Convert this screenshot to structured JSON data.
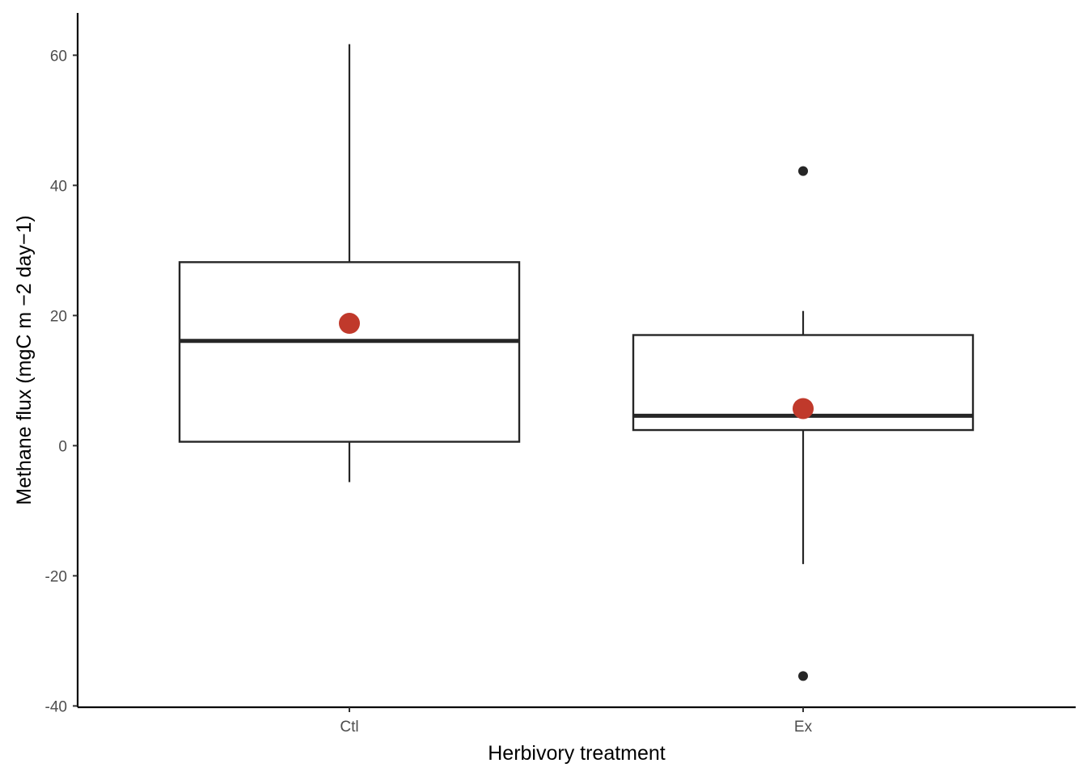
{
  "chart_data": {
    "type": "boxplot",
    "title": "",
    "xlabel": "Herbivory treatment",
    "ylabel": "Methane flux (mgC m −2 day−1)",
    "ylim": [
      -40.2,
      66.5
    ],
    "yticks": [
      -40,
      -20,
      0,
      20,
      40,
      60
    ],
    "ytick_labels": [
      "-40",
      "-20",
      "0",
      "20",
      "40",
      "60"
    ],
    "categories": [
      "Ctl",
      "Ex"
    ],
    "boxes": [
      {
        "category": "Ctl",
        "whisker_low": -5.6,
        "q1": 0.6,
        "median": 16.1,
        "q3": 28.2,
        "whisker_high": 61.7,
        "mean": 18.8,
        "outliers": []
      },
      {
        "category": "Ex",
        "whisker_low": -18.2,
        "q1": 2.4,
        "median": 4.6,
        "q3": 17.0,
        "whisker_high": 20.7,
        "mean": 5.7,
        "outliers": [
          42.2,
          -35.4
        ]
      }
    ],
    "grid": false,
    "legend": "none",
    "colors": {
      "box_line": "#262626",
      "mean_point": "#c0392b",
      "outlier": "#262626",
      "axis": "#000000"
    }
  }
}
